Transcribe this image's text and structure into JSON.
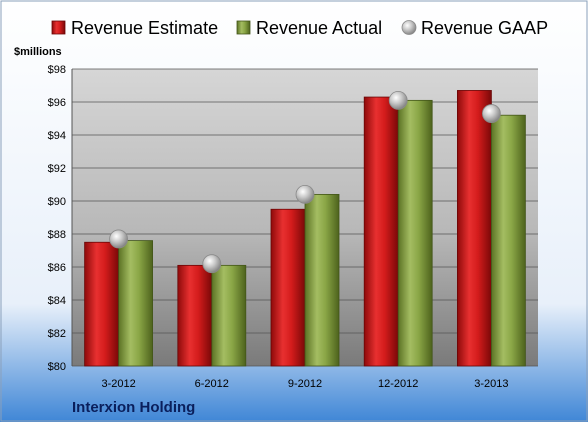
{
  "chart_data": {
    "type": "bar",
    "categories": [
      "3-2012",
      "6-2012",
      "9-2012",
      "12-2012",
      "3-2013"
    ],
    "series": [
      {
        "name": "Revenue Estimate",
        "kind": "bar",
        "color": "#cc1111",
        "values": [
          87.5,
          86.1,
          89.5,
          96.3,
          96.7
        ]
      },
      {
        "name": "Revenue Actual",
        "kind": "bar",
        "color": "#7f9a3a",
        "values": [
          87.6,
          86.1,
          90.4,
          96.1,
          95.2
        ]
      },
      {
        "name": "Revenue GAAP",
        "kind": "marker",
        "color": "#b0b0b0",
        "values": [
          87.7,
          86.2,
          90.4,
          96.1,
          95.3
        ]
      }
    ],
    "yunit": "$millions",
    "ylim": [
      80,
      98
    ],
    "yticks": [
      "$80",
      "$82",
      "$84",
      "$86",
      "$88",
      "$90",
      "$92",
      "$94",
      "$96",
      "$98"
    ],
    "ytick_values": [
      80,
      82,
      84,
      86,
      88,
      90,
      92,
      94,
      96,
      98
    ],
    "grid": true,
    "legend_position": "top",
    "caption": "Interxion Holding"
  }
}
